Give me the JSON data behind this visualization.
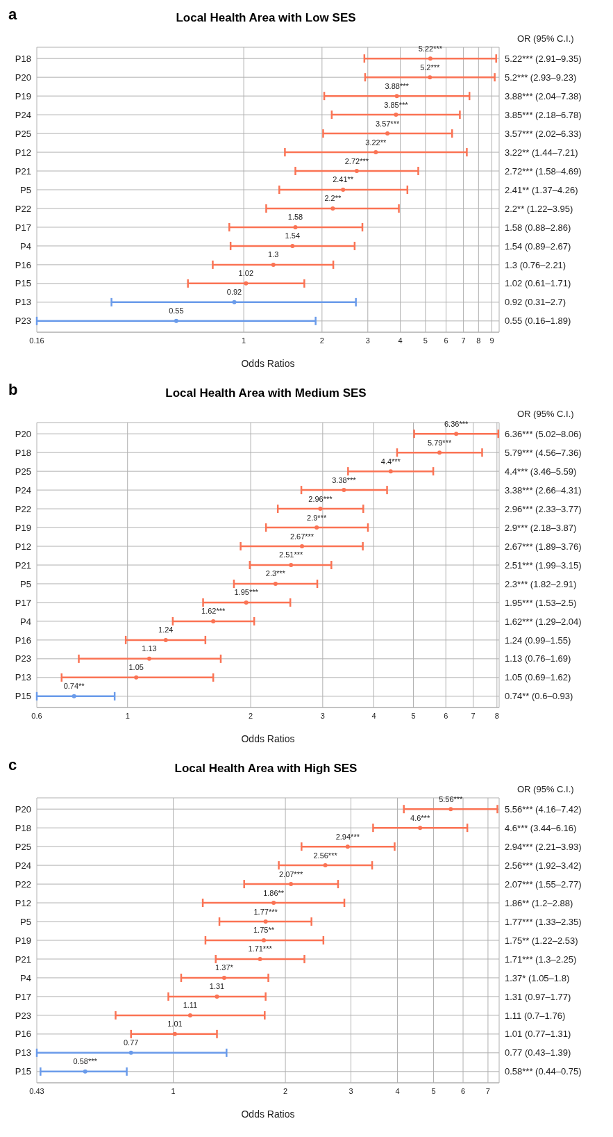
{
  "chart_data": [
    {
      "type": "scatter",
      "orientation": "horizontal",
      "title": "Local Health Area with Low SES",
      "xlabel": "Odds Ratios",
      "log": "x",
      "grid": true,
      "marker": "circle",
      "xlim": [
        0.16,
        9.6
      ],
      "xticks": [
        0.16,
        1,
        2,
        3,
        4,
        5,
        6,
        7,
        8,
        9
      ],
      "categories": [
        "P18",
        "P20",
        "P19",
        "P24",
        "P25",
        "P12",
        "P21",
        "P5",
        "P22",
        "P17",
        "P4",
        "P16",
        "P15",
        "P13",
        "P23"
      ],
      "values": [
        5.22,
        5.2,
        3.88,
        3.85,
        3.57,
        3.22,
        2.72,
        2.41,
        2.2,
        1.58,
        1.54,
        1.3,
        1.02,
        0.92,
        0.55
      ],
      "errors": [
        [
          2.91,
          9.35
        ],
        [
          2.93,
          9.23
        ],
        [
          2.04,
          7.38
        ],
        [
          2.18,
          6.78
        ],
        [
          2.02,
          6.33
        ],
        [
          1.44,
          7.21
        ],
        [
          1.58,
          4.69
        ],
        [
          1.37,
          4.26
        ],
        [
          1.22,
          3.95
        ],
        [
          0.88,
          2.86
        ],
        [
          0.89,
          2.67
        ],
        [
          0.76,
          2.21
        ],
        [
          0.61,
          1.71
        ],
        [
          0.31,
          2.7
        ],
        [
          0.16,
          1.89
        ]
      ],
      "colors": [
        "#fa7354",
        "#fa7354",
        "#fa7354",
        "#fa7354",
        "#fa7354",
        "#fa7354",
        "#fa7354",
        "#fa7354",
        "#fa7354",
        "#fa7354",
        "#fa7354",
        "#fa7354",
        "#fa7354",
        "#6a9bea",
        "#6a9bea"
      ],
      "value_labels": [
        "5.22***",
        "5.2***",
        "3.88***",
        "3.85***",
        "3.57***",
        "3.22**",
        "2.72***",
        "2.41**",
        "2.2**",
        "1.58",
        "1.54",
        "1.3",
        "1.02",
        "0.92",
        "0.55"
      ],
      "annotations": [
        "a",
        "OR (95% C.I.)",
        "5.22*** (2.91–9.35)",
        "5.2*** (2.93–9.23)",
        "3.88*** (2.04–7.38)",
        "3.85*** (2.18–6.78)",
        "3.57*** (2.02–6.33)",
        "3.22** (1.44–7.21)",
        "2.72*** (1.58–4.69)",
        "2.41** (1.37–4.26)",
        "2.2** (1.22–3.95)",
        "1.58 (0.88–2.86)",
        "1.54 (0.89–2.67)",
        "1.3 (0.76–2.21)",
        "1.02 (0.61–1.71)",
        "0.92 (0.31–2.7)",
        "0.55 (0.16–1.89)"
      ]
    },
    {
      "type": "scatter",
      "orientation": "horizontal",
      "title": "Local Health Area with Medium SES",
      "xlabel": "Odds Ratios",
      "log": "x",
      "grid": true,
      "marker": "circle",
      "xlim": [
        0.6,
        8.1
      ],
      "xticks": [
        0.6,
        1,
        2,
        3,
        4,
        5,
        6,
        7,
        8
      ],
      "categories": [
        "P20",
        "P18",
        "P25",
        "P24",
        "P22",
        "P19",
        "P12",
        "P21",
        "P5",
        "P17",
        "P4",
        "P16",
        "P23",
        "P13",
        "P15"
      ],
      "values": [
        6.36,
        5.79,
        4.4,
        3.38,
        2.96,
        2.9,
        2.67,
        2.51,
        2.3,
        1.95,
        1.62,
        1.24,
        1.13,
        1.05,
        0.74
      ],
      "errors": [
        [
          5.02,
          8.06
        ],
        [
          4.56,
          7.36
        ],
        [
          3.46,
          5.59
        ],
        [
          2.66,
          4.31
        ],
        [
          2.33,
          3.77
        ],
        [
          2.18,
          3.87
        ],
        [
          1.89,
          3.76
        ],
        [
          1.99,
          3.15
        ],
        [
          1.82,
          2.91
        ],
        [
          1.53,
          2.5
        ],
        [
          1.29,
          2.04
        ],
        [
          0.99,
          1.55
        ],
        [
          0.76,
          1.69
        ],
        [
          0.69,
          1.62
        ],
        [
          0.6,
          0.93
        ]
      ],
      "colors": [
        "#fa7354",
        "#fa7354",
        "#fa7354",
        "#fa7354",
        "#fa7354",
        "#fa7354",
        "#fa7354",
        "#fa7354",
        "#fa7354",
        "#fa7354",
        "#fa7354",
        "#fa7354",
        "#fa7354",
        "#fa7354",
        "#6a9bea"
      ],
      "value_labels": [
        "6.36***",
        "5.79***",
        "4.4***",
        "3.38***",
        "2.96***",
        "2.9***",
        "2.67***",
        "2.51***",
        "2.3***",
        "1.95***",
        "1.62***",
        "1.24",
        "1.13",
        "1.05",
        "0.74**"
      ],
      "annotations": [
        "b",
        "OR (95% C.I.)",
        "6.36*** (5.02–8.06)",
        "5.79*** (4.56–7.36)",
        "4.4*** (3.46–5.59)",
        "3.38*** (2.66–4.31)",
        "2.96*** (2.33–3.77)",
        "2.9*** (2.18–3.87)",
        "2.67*** (1.89–3.76)",
        "2.51*** (1.99–3.15)",
        "2.3*** (1.82–2.91)",
        "1.95*** (1.53–2.5)",
        "1.62*** (1.29–2.04)",
        "1.24 (0.99–1.55)",
        "1.13 (0.76–1.69)",
        "1.05 (0.69–1.62)",
        "0.74** (0.6–0.93)"
      ]
    },
    {
      "type": "scatter",
      "orientation": "horizontal",
      "title": "Local Health Area with High SES",
      "xlabel": "Odds Ratios",
      "log": "x",
      "grid": true,
      "marker": "circle",
      "xlim": [
        0.43,
        7.5
      ],
      "xticks": [
        0.43,
        1,
        2,
        3,
        4,
        5,
        6,
        7
      ],
      "categories": [
        "P20",
        "P18",
        "P25",
        "P24",
        "P22",
        "P12",
        "P5",
        "P19",
        "P21",
        "P4",
        "P17",
        "P23",
        "P16",
        "P13",
        "P15"
      ],
      "values": [
        5.56,
        4.6,
        2.94,
        2.56,
        2.07,
        1.86,
        1.77,
        1.75,
        1.71,
        1.37,
        1.31,
        1.11,
        1.01,
        0.77,
        0.58
      ],
      "errors": [
        [
          4.16,
          7.42
        ],
        [
          3.44,
          6.16
        ],
        [
          2.21,
          3.93
        ],
        [
          1.92,
          3.42
        ],
        [
          1.55,
          2.77
        ],
        [
          1.2,
          2.88
        ],
        [
          1.33,
          2.35
        ],
        [
          1.22,
          2.53
        ],
        [
          1.3,
          2.25
        ],
        [
          1.05,
          1.8
        ],
        [
          0.97,
          1.77
        ],
        [
          0.7,
          1.76
        ],
        [
          0.77,
          1.31
        ],
        [
          0.43,
          1.39
        ],
        [
          0.44,
          0.75
        ]
      ],
      "colors": [
        "#fa7354",
        "#fa7354",
        "#fa7354",
        "#fa7354",
        "#fa7354",
        "#fa7354",
        "#fa7354",
        "#fa7354",
        "#fa7354",
        "#fa7354",
        "#fa7354",
        "#fa7354",
        "#fa7354",
        "#6a9bea",
        "#6a9bea"
      ],
      "value_labels": [
        "5.56***",
        "4.6***",
        "2.94***",
        "2.56***",
        "2.07***",
        "1.86**",
        "1.77***",
        "1.75**",
        "1.71***",
        "1.37*",
        "1.31",
        "1.11",
        "1.01",
        "0.77",
        "0.58***"
      ],
      "annotations": [
        "c",
        "OR (95% C.I.)",
        "5.56*** (4.16–7.42)",
        "4.6*** (3.44–6.16)",
        "2.94*** (2.21–3.93)",
        "2.56*** (1.92–3.42)",
        "2.07*** (1.55–2.77)",
        "1.86** (1.2–2.88)",
        "1.77*** (1.33–2.35)",
        "1.75** (1.22–2.53)",
        "1.71*** (1.3–2.25)",
        "1.37* (1.05–1.8)",
        "1.31 (0.97–1.77)",
        "1.11 (0.7–1.76)",
        "1.01 (0.77–1.31)",
        "0.77 (0.43–1.39)",
        "0.58*** (0.44–0.75)"
      ]
    }
  ]
}
